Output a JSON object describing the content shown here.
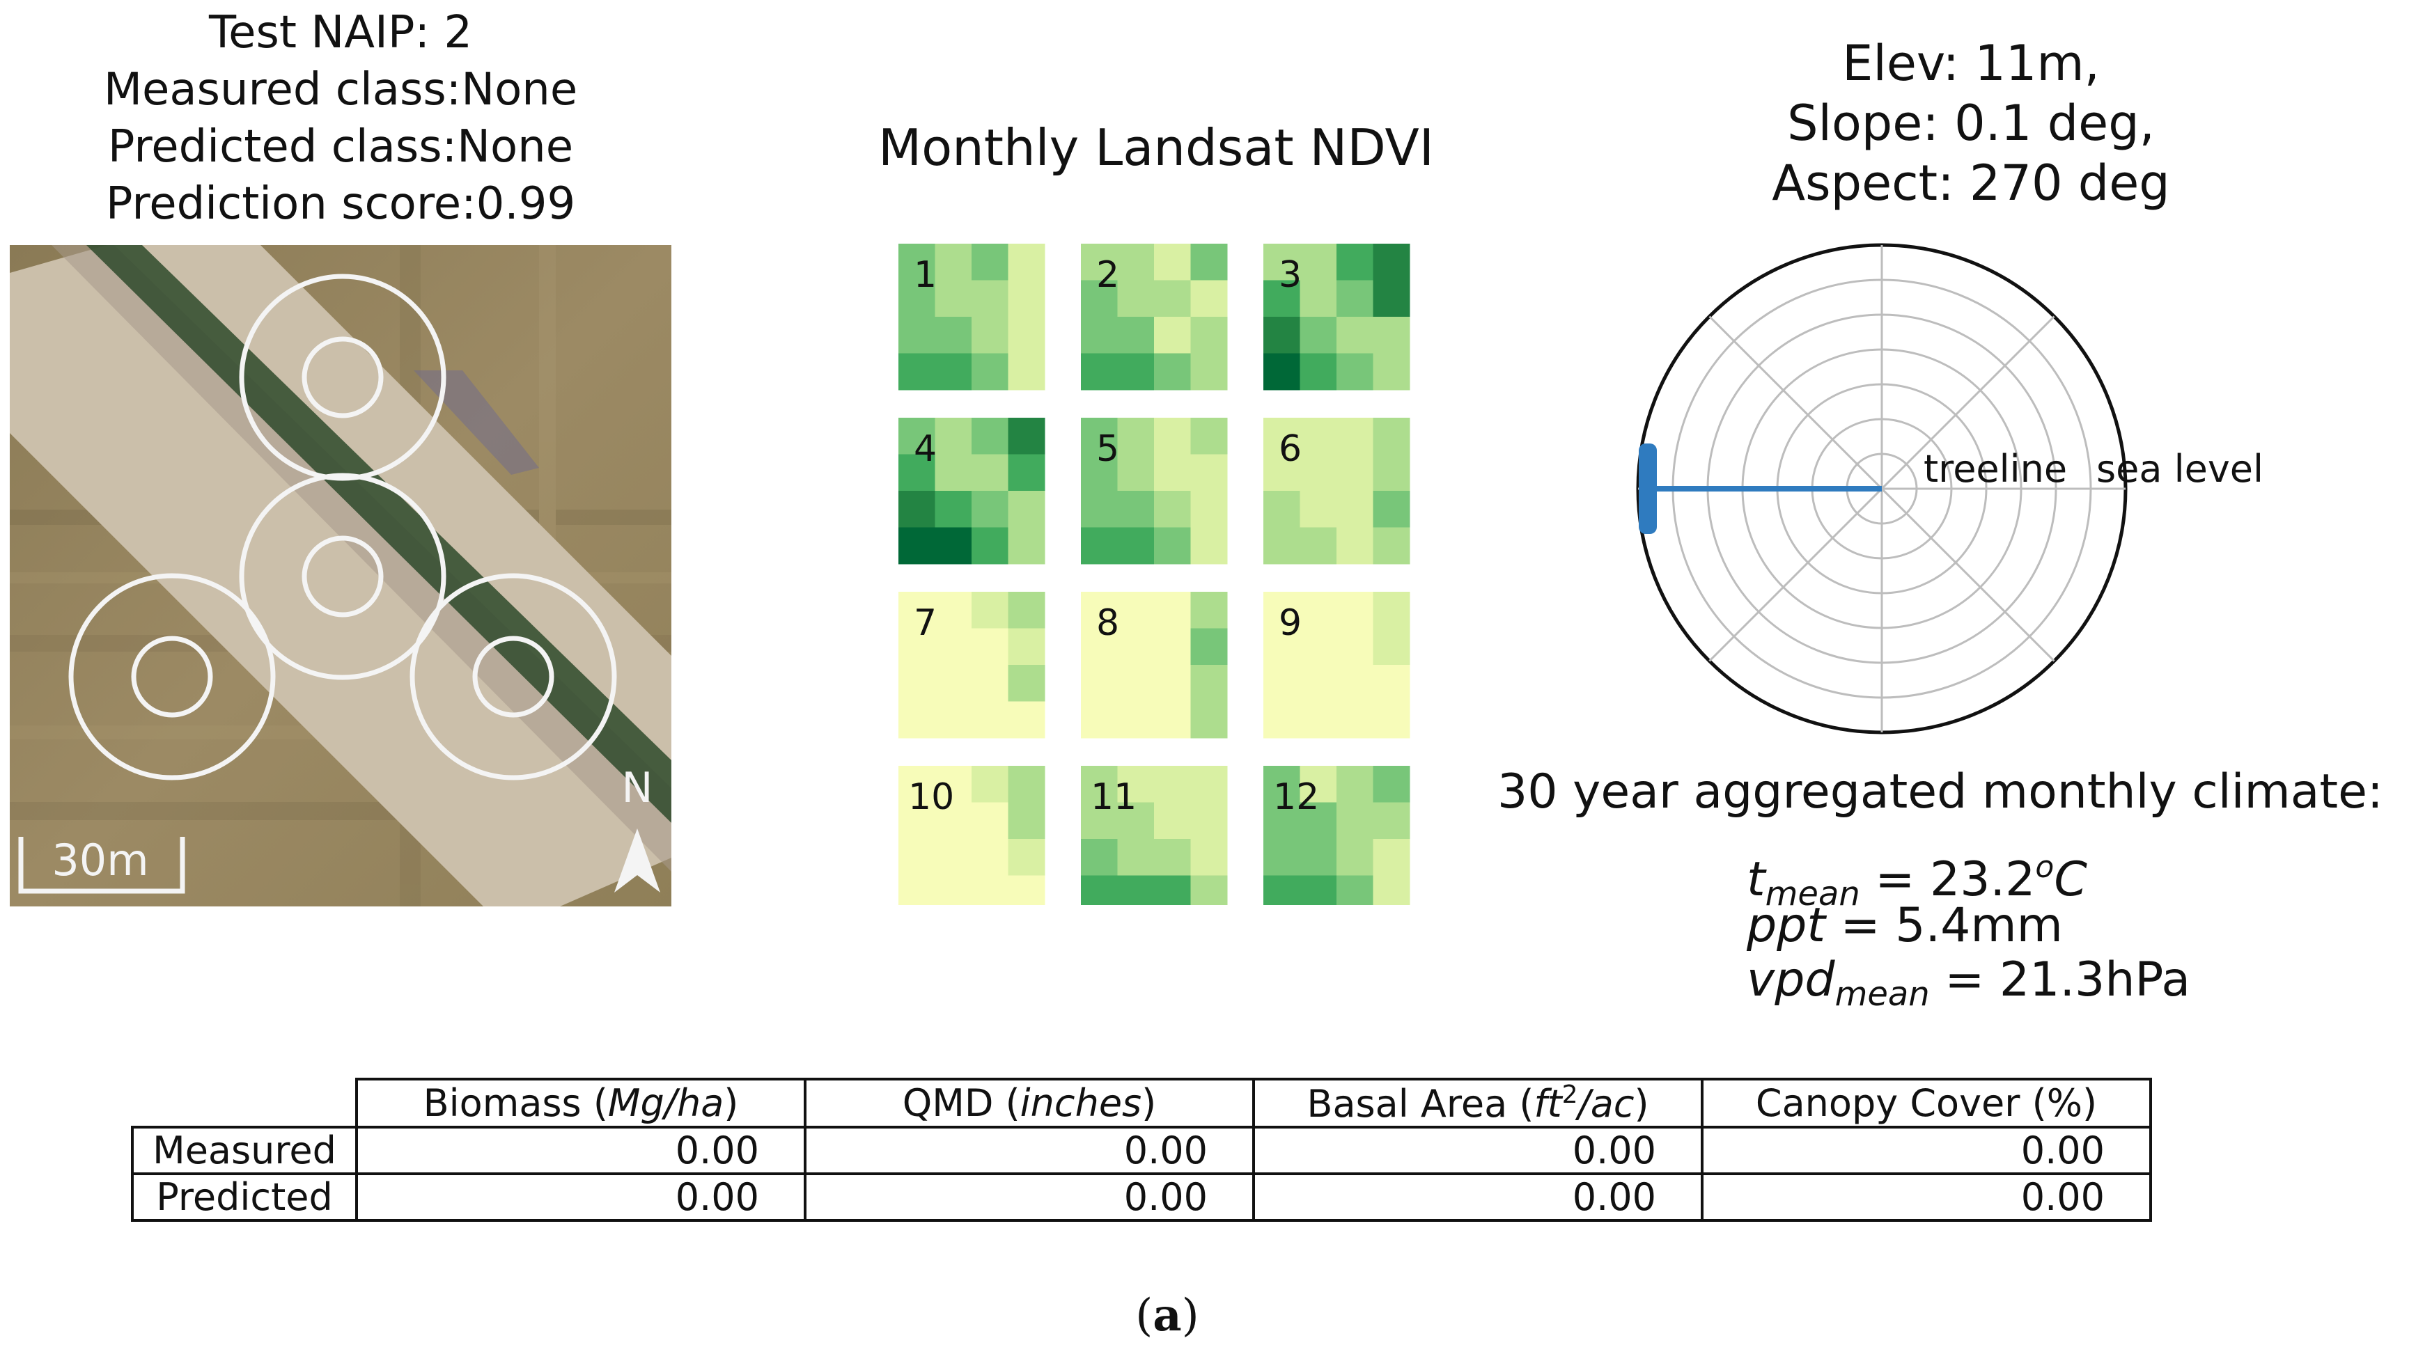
{
  "naip": {
    "title": "Test NAIP: 2",
    "measured_class": "Measured class:None",
    "predicted_class": "Predicted class:None",
    "prediction_score": "Prediction score:0.99",
    "scale_label": "30m",
    "north_label": "N"
  },
  "ndvi": {
    "title": "Monthly Landsat NDVI",
    "palette": [
      "#ffffcc",
      "#f7fcb9",
      "#d9f0a3",
      "#addd8e",
      "#78c679",
      "#41ab5d",
      "#238443",
      "#006837"
    ],
    "months": [
      {
        "label": "1",
        "cells": [
          [
            4,
            3,
            4,
            2
          ],
          [
            4,
            3,
            3,
            2
          ],
          [
            4,
            4,
            3,
            2
          ],
          [
            5,
            5,
            4,
            2
          ]
        ]
      },
      {
        "label": "2",
        "cells": [
          [
            3,
            3,
            2,
            4
          ],
          [
            4,
            3,
            3,
            2
          ],
          [
            4,
            4,
            2,
            3
          ],
          [
            5,
            5,
            4,
            3
          ]
        ]
      },
      {
        "label": "3",
        "cells": [
          [
            3,
            3,
            5,
            6
          ],
          [
            5,
            3,
            4,
            6
          ],
          [
            6,
            4,
            3,
            3
          ],
          [
            7,
            5,
            4,
            3
          ]
        ]
      },
      {
        "label": "4",
        "cells": [
          [
            4,
            3,
            4,
            6
          ],
          [
            5,
            3,
            3,
            5
          ],
          [
            6,
            5,
            4,
            3
          ],
          [
            7,
            7,
            5,
            3
          ]
        ]
      },
      {
        "label": "5",
        "cells": [
          [
            4,
            3,
            2,
            3
          ],
          [
            4,
            3,
            2,
            2
          ],
          [
            4,
            4,
            3,
            2
          ],
          [
            5,
            5,
            4,
            2
          ]
        ]
      },
      {
        "label": "6",
        "cells": [
          [
            2,
            2,
            2,
            3
          ],
          [
            2,
            2,
            2,
            3
          ],
          [
            3,
            2,
            2,
            4
          ],
          [
            3,
            3,
            2,
            3
          ]
        ]
      },
      {
        "label": "7",
        "cells": [
          [
            1,
            1,
            2,
            3
          ],
          [
            1,
            1,
            1,
            2
          ],
          [
            1,
            1,
            1,
            3
          ],
          [
            1,
            1,
            1,
            1
          ]
        ]
      },
      {
        "label": "8",
        "cells": [
          [
            1,
            1,
            1,
            3
          ],
          [
            1,
            1,
            1,
            4
          ],
          [
            1,
            1,
            1,
            3
          ],
          [
            1,
            1,
            1,
            3
          ]
        ]
      },
      {
        "label": "9",
        "cells": [
          [
            1,
            1,
            1,
            2
          ],
          [
            1,
            1,
            1,
            2
          ],
          [
            1,
            1,
            1,
            1
          ],
          [
            1,
            1,
            1,
            1
          ]
        ]
      },
      {
        "label": "10",
        "cells": [
          [
            1,
            1,
            2,
            3
          ],
          [
            1,
            1,
            1,
            3
          ],
          [
            1,
            1,
            1,
            2
          ],
          [
            1,
            1,
            1,
            1
          ]
        ]
      },
      {
        "label": "11",
        "cells": [
          [
            3,
            2,
            2,
            2
          ],
          [
            3,
            3,
            2,
            2
          ],
          [
            4,
            3,
            3,
            2
          ],
          [
            5,
            5,
            5,
            3
          ]
        ]
      },
      {
        "label": "12",
        "cells": [
          [
            4,
            2,
            3,
            4
          ],
          [
            4,
            4,
            3,
            3
          ],
          [
            4,
            4,
            3,
            2
          ],
          [
            5,
            5,
            4,
            2
          ]
        ]
      }
    ]
  },
  "terrain": {
    "elev": "Elev: 11m,",
    "slope": "Slope: 0.1 deg,",
    "aspect": "Aspect: 270 deg",
    "treeline_label": "treeline",
    "sea_level_label": "sea level",
    "aspect_deg": 270,
    "radius_value": 1.0,
    "line_color": "#2f7bbf"
  },
  "climate": {
    "heading": "30 year aggregated monthly climate:",
    "tmean_var": "t",
    "tmean_sub": "mean",
    "tmean_eq": " = 23.2",
    "tmean_sup": "o",
    "tmean_unit": "C",
    "ppt_var": "ppt",
    "ppt_eq": " = 5.4mm",
    "vpd_var": "vpd",
    "vpd_sub": "mean",
    "vpd_eq": " = 21.3hPa"
  },
  "table": {
    "col_biomass": "Biomass (",
    "col_biomass_unit": "Mg/ha",
    "col_qmd": "QMD (",
    "col_qmd_unit": "inches",
    "col_basal": "Basal Area (",
    "col_basal_unit1": "ft",
    "col_basal_sup": "2",
    "col_basal_unit2": "/ac",
    "col_canopy": "Canopy Cover (%)",
    "close_paren": ")",
    "rows": [
      {
        "label": "Measured",
        "values": [
          "0.00",
          "0.00",
          "0.00",
          "0.00"
        ]
      },
      {
        "label": "Predicted",
        "values": [
          "0.00",
          "0.00",
          "0.00",
          "0.00"
        ]
      }
    ]
  },
  "caption_prefix": "(",
  "caption_letter": "a",
  "caption_suffix": ")"
}
